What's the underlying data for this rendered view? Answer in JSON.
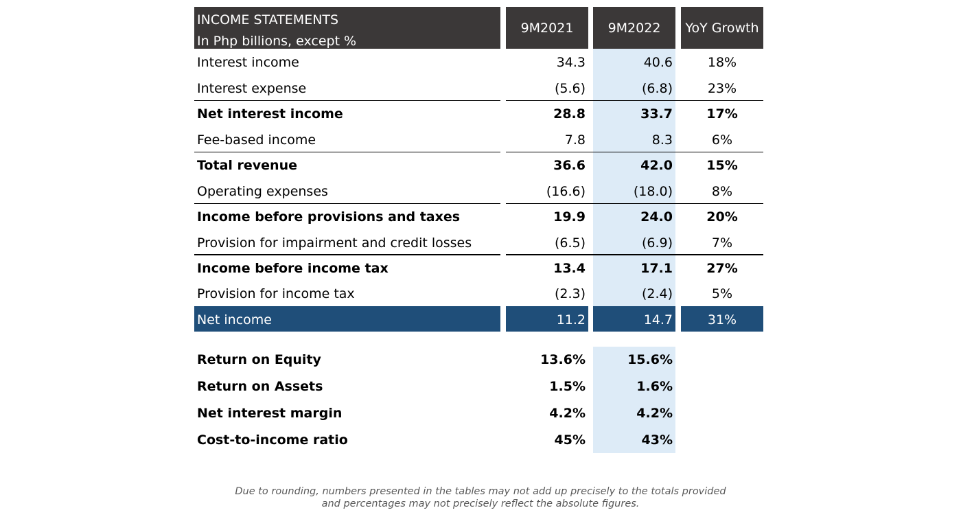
{
  "header": {
    "title": "INCOME STATEMENTS",
    "subtitle": "In Php billions, except %",
    "col1": "9M2021",
    "col2": "9M2022",
    "col3": "YoY Growth"
  },
  "rows": [
    {
      "label": "Interest income",
      "v1": "34.3",
      "v2": "40.6",
      "v3": "18%"
    },
    {
      "label": "Interest expense",
      "v1": "(5.6)",
      "v2": "(6.8)",
      "v3": "23%"
    },
    {
      "label": "Net interest income",
      "v1": "28.8",
      "v2": "33.7",
      "v3": "17%"
    },
    {
      "label": "Fee-based income",
      "v1": "7.8",
      "v2": "8.3",
      "v3": "6%"
    },
    {
      "label": "Total revenue",
      "v1": "36.6",
      "v2": "42.0",
      "v3": "15%"
    },
    {
      "label": "Operating expenses",
      "v1": "(16.6)",
      "v2": "(18.0)",
      "v3": "8%"
    },
    {
      "label": "Income before provisions and taxes",
      "v1": "19.9",
      "v2": "24.0",
      "v3": "20%"
    },
    {
      "label": "Provision for impairment and credit losses",
      "v1": "(6.5)",
      "v2": "(6.9)",
      "v3": "7%"
    },
    {
      "label": "Income before income tax",
      "v1": "13.4",
      "v2": "17.1",
      "v3": "27%"
    },
    {
      "label": "Provision for income tax",
      "v1": "(2.3)",
      "v2": "(2.4)",
      "v3": "5%"
    }
  ],
  "net_income": {
    "label": "Net income",
    "v1": "11.2",
    "v2": "14.7",
    "v3": "31%"
  },
  "ratios": [
    {
      "label": "Return on Equity",
      "v1": "13.6%",
      "v2": "15.6%"
    },
    {
      "label": "Return on Assets",
      "v1": "1.5%",
      "v2": "1.6%"
    },
    {
      "label": "Net interest margin",
      "v1": "4.2%",
      "v2": "4.2%"
    },
    {
      "label": "Cost-to-income ratio",
      "v1": "45%",
      "v2": "43%"
    }
  ],
  "footnote": {
    "line1": "Due to rounding, numbers presented in the tables may not add up precisely to the totals provided",
    "line2": "and percentages may not precisely reflect the absolute figures."
  },
  "colors": {
    "header_bg": "#3b3838",
    "net_income_bg": "#1f4e79",
    "highlight_col": "#ddebf7"
  }
}
